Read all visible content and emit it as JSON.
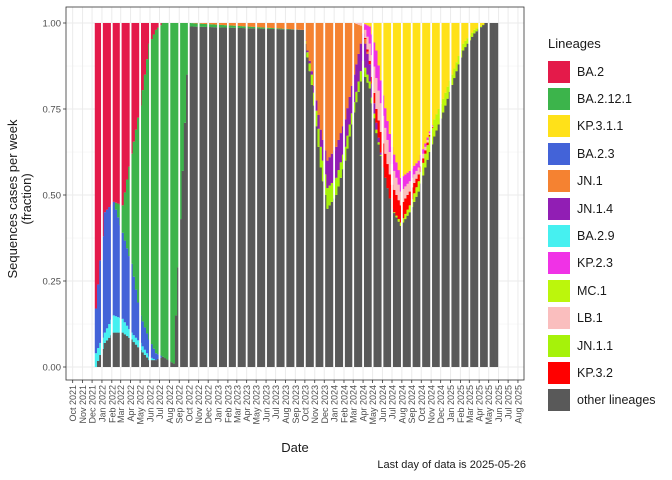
{
  "chart_data": {
    "type": "bar",
    "stacked": true,
    "ylabel": "Sequences cases per week\n(fraction)",
    "xlabel": "Date",
    "ylim": [
      0,
      1
    ],
    "y_ticks": [
      "0.00",
      "0.25",
      "0.50",
      "0.75",
      "1.00"
    ],
    "x_start": "2021-09-10",
    "x_end": "2025-08-20",
    "x_ticks": [
      "Oct 2021",
      "Nov 2021",
      "Dec 2021",
      "Jan 2022",
      "Feb 2022",
      "Mar 2022",
      "Apr 2022",
      "May 2022",
      "Jun 2022",
      "Jul 2022",
      "Aug 2022",
      "Sep 2022",
      "Oct 2022",
      "Nov 2022",
      "Dec 2022",
      "Jan 2023",
      "Feb 2023",
      "Mar 2023",
      "Apr 2023",
      "May 2023",
      "Jun 2023",
      "Jul 2023",
      "Aug 2023",
      "Sep 2023",
      "Oct 2023",
      "Nov 2023",
      "Dec 2023",
      "Jan 2024",
      "Feb 2024",
      "Mar 2024",
      "Apr 2024",
      "May 2024",
      "Jun 2024",
      "Jul 2024",
      "Aug 2024",
      "Sep 2024",
      "Oct 2024",
      "Nov 2024",
      "Dec 2024",
      "Jan 2025",
      "Feb 2025",
      "Mar 2025",
      "Apr 2025",
      "May 2025",
      "Jun 2025",
      "Jul 2025",
      "Aug 2025"
    ],
    "grid": true,
    "legend": {
      "title": "Lineages",
      "placement": "right",
      "entries": [
        {
          "label": "BA.2",
          "color": "#E41A4A"
        },
        {
          "label": "BA.2.12.1",
          "color": "#3CB44B"
        },
        {
          "label": "KP.3.1.1",
          "color": "#FFE119"
        },
        {
          "label": "BA.2.3",
          "color": "#4363D8"
        },
        {
          "label": "JN.1",
          "color": "#F58231"
        },
        {
          "label": "JN.1.4",
          "color": "#911EB4"
        },
        {
          "label": "BA.2.9",
          "color": "#46F0F0"
        },
        {
          "label": "KP.2.3",
          "color": "#F032E6"
        },
        {
          "label": "MC.1",
          "color": "#BCF60C"
        },
        {
          "label": "LB.1",
          "color": "#FABEBE"
        },
        {
          "label": "JN.1.1",
          "color": "#A6F20A"
        },
        {
          "label": "KP.3.2",
          "color": "#FF0000"
        },
        {
          "label": "other lineages",
          "color": "#595959"
        }
      ]
    },
    "stack_order_bottom_to_top": [
      "other lineages",
      "BA.2.9",
      "BA.2.3",
      "BA.2.12.1",
      "BA.2",
      "JN.1.1",
      "MC.1",
      "JN.1.4",
      "JN.1",
      "KP.3.2",
      "LB.1",
      "KP.2.3",
      "KP.3.1.1"
    ],
    "weekly_series": {
      "weeks": [
        "2021-12-13",
        "2022-01-10",
        "2022-02-07",
        "2022-03-07",
        "2022-04-04",
        "2022-05-02",
        "2022-05-30",
        "2022-06-20",
        "2022-07-11",
        "2022-08-15",
        "2022-10-03",
        "2023-09-25",
        "2023-10-23",
        "2023-11-20",
        "2023-12-11",
        "2024-01-08",
        "2024-02-05",
        "2024-03-04",
        "2024-04-01",
        "2024-04-22",
        "2024-05-13",
        "2024-06-03",
        "2024-07-01",
        "2024-07-29",
        "2024-08-26",
        "2024-09-23",
        "2024-10-14",
        "2024-11-11",
        "2024-12-09",
        "2025-01-06",
        "2025-02-10",
        "2025-03-17",
        "2025-04-21",
        "2025-05-26"
      ],
      "BA.2": [
        0.83,
        0.55,
        0.52,
        0.53,
        0.38,
        0.24,
        0.06,
        0.02,
        0.0,
        0.0,
        0.0,
        0.0,
        0.0,
        0.0,
        0.0,
        0.0,
        0.0,
        0.0,
        0.0,
        0.0,
        0.0,
        0.0,
        0.0,
        0.0,
        0.0,
        0.0,
        0.0,
        0.0,
        0.0,
        0.0,
        0.0,
        0.0,
        0.0,
        0.0
      ],
      "BA.2.12.1": [
        0.0,
        0.0,
        0.0,
        0.08,
        0.32,
        0.61,
        0.86,
        0.94,
        0.97,
        0.99,
        0.01,
        0.0,
        0.0,
        0.0,
        0.0,
        0.0,
        0.0,
        0.0,
        0.0,
        0.0,
        0.0,
        0.0,
        0.0,
        0.0,
        0.0,
        0.0,
        0.0,
        0.0,
        0.0,
        0.0,
        0.0,
        0.0,
        0.0,
        0.0
      ],
      "BA.2.3": [
        0.13,
        0.35,
        0.33,
        0.25,
        0.2,
        0.08,
        0.05,
        0.02,
        0.0,
        0.0,
        0.0,
        0.0,
        0.0,
        0.0,
        0.0,
        0.0,
        0.0,
        0.0,
        0.0,
        0.0,
        0.0,
        0.0,
        0.0,
        0.0,
        0.0,
        0.0,
        0.0,
        0.0,
        0.0,
        0.0,
        0.0,
        0.0,
        0.0,
        0.0
      ],
      "BA.2.9": [
        0.04,
        0.03,
        0.05,
        0.04,
        0.02,
        0.02,
        0.01,
        0.0,
        0.0,
        0.0,
        0.0,
        0.0,
        0.0,
        0.0,
        0.0,
        0.0,
        0.0,
        0.0,
        0.0,
        0.0,
        0.0,
        0.0,
        0.0,
        0.0,
        0.0,
        0.0,
        0.0,
        0.0,
        0.0,
        0.0,
        0.0,
        0.0,
        0.0,
        0.0
      ],
      "JN.1": [
        0.0,
        0.0,
        0.0,
        0.0,
        0.0,
        0.0,
        0.0,
        0.0,
        0.0,
        0.0,
        0.0,
        0.02,
        0.14,
        0.31,
        0.4,
        0.36,
        0.28,
        0.15,
        0.02,
        0.0,
        0.0,
        0.0,
        0.0,
        0.0,
        0.0,
        0.0,
        0.0,
        0.0,
        0.0,
        0.0,
        0.0,
        0.0,
        0.0,
        0.0
      ],
      "JN.1.4": [
        0.0,
        0.0,
        0.0,
        0.0,
        0.0,
        0.0,
        0.0,
        0.0,
        0.0,
        0.0,
        0.0,
        0.0,
        0.01,
        0.05,
        0.08,
        0.09,
        0.08,
        0.08,
        0.08,
        0.05,
        0.02,
        0.0,
        0.0,
        0.0,
        0.0,
        0.0,
        0.0,
        0.0,
        0.0,
        0.0,
        0.0,
        0.0,
        0.0,
        0.0
      ],
      "JN.1.1": [
        0.0,
        0.0,
        0.0,
        0.0,
        0.0,
        0.0,
        0.0,
        0.0,
        0.0,
        0.0,
        0.0,
        0.0,
        0.03,
        0.06,
        0.06,
        0.05,
        0.04,
        0.03,
        0.03,
        0.02,
        0.01,
        0.0,
        0.0,
        0.0,
        0.0,
        0.0,
        0.0,
        0.0,
        0.0,
        0.0,
        0.0,
        0.0,
        0.0,
        0.0
      ],
      "MC.1": [
        0.0,
        0.0,
        0.0,
        0.0,
        0.0,
        0.0,
        0.0,
        0.0,
        0.0,
        0.0,
        0.0,
        0.0,
        0.0,
        0.0,
        0.0,
        0.0,
        0.0,
        0.0,
        0.0,
        0.0,
        0.0,
        0.0,
        0.0,
        0.01,
        0.02,
        0.03,
        0.04,
        0.05,
        0.04,
        0.03,
        0.02,
        0.01,
        0.0,
        0.0
      ],
      "KP.3.2": [
        0.0,
        0.0,
        0.0,
        0.0,
        0.0,
        0.0,
        0.0,
        0.0,
        0.0,
        0.0,
        0.0,
        0.0,
        0.0,
        0.0,
        0.0,
        0.0,
        0.0,
        0.0,
        0.0,
        0.01,
        0.04,
        0.07,
        0.07,
        0.05,
        0.04,
        0.02,
        0.01,
        0.0,
        0.0,
        0.0,
        0.0,
        0.0,
        0.0,
        0.0
      ],
      "LB.1": [
        0.0,
        0.0,
        0.0,
        0.0,
        0.0,
        0.0,
        0.0,
        0.0,
        0.0,
        0.0,
        0.0,
        0.0,
        0.0,
        0.0,
        0.0,
        0.0,
        0.0,
        0.0,
        0.01,
        0.05,
        0.09,
        0.08,
        0.06,
        0.04,
        0.03,
        0.02,
        0.01,
        0.0,
        0.0,
        0.0,
        0.0,
        0.0,
        0.0,
        0.0
      ],
      "KP.2.3": [
        0.0,
        0.0,
        0.0,
        0.0,
        0.0,
        0.0,
        0.0,
        0.0,
        0.0,
        0.0,
        0.0,
        0.0,
        0.0,
        0.0,
        0.0,
        0.0,
        0.0,
        0.0,
        0.0,
        0.05,
        0.08,
        0.06,
        0.05,
        0.04,
        0.03,
        0.02,
        0.01,
        0.0,
        0.0,
        0.0,
        0.0,
        0.0,
        0.0,
        0.0
      ],
      "KP.3.1.1": [
        0.0,
        0.0,
        0.0,
        0.0,
        0.0,
        0.0,
        0.0,
        0.0,
        0.0,
        0.0,
        0.0,
        0.0,
        0.0,
        0.0,
        0.0,
        0.0,
        0.0,
        0.0,
        0.0,
        0.01,
        0.08,
        0.21,
        0.36,
        0.45,
        0.43,
        0.4,
        0.35,
        0.28,
        0.22,
        0.15,
        0.06,
        0.02,
        0.0,
        0.0
      ],
      "other lineages": [
        0.0,
        0.07,
        0.1,
        0.1,
        0.08,
        0.05,
        0.02,
        0.02,
        0.03,
        0.01,
        0.99,
        0.98,
        0.82,
        0.58,
        0.46,
        0.5,
        0.6,
        0.74,
        0.86,
        0.81,
        0.68,
        0.58,
        0.46,
        0.41,
        0.45,
        0.51,
        0.58,
        0.67,
        0.74,
        0.82,
        0.92,
        0.97,
        1.0,
        1.0
      ]
    }
  },
  "caption": "Last day of data is 2025-05-26"
}
